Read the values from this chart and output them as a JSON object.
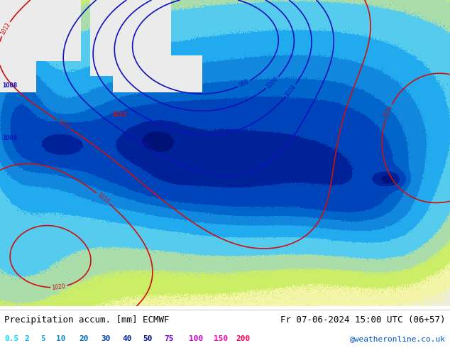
{
  "title_left": "Precipitation accum. [mm] ECMWF",
  "title_right": "Fr 07-06-2024 15:00 UTC (06+57)",
  "credit": "@weatheronline.co.uk",
  "colorbar_values": [
    "0.5",
    "2",
    "5",
    "10",
    "20",
    "30",
    "40",
    "50",
    "75",
    "100",
    "150",
    "200"
  ],
  "colorbar_colors": [
    "#00e5ff",
    "#00bbee",
    "#0099dd",
    "#0077cc",
    "#0055bb",
    "#0033aa",
    "#002299",
    "#001188",
    "#8800cc",
    "#cc00bb",
    "#ff00aa",
    "#ff0055"
  ],
  "bg_color": "#ffffff",
  "fig_width": 6.34,
  "fig_height": 4.9,
  "dpi": 100,
  "title_fontsize": 9,
  "legend_fontsize": 8,
  "credit_fontsize": 8
}
